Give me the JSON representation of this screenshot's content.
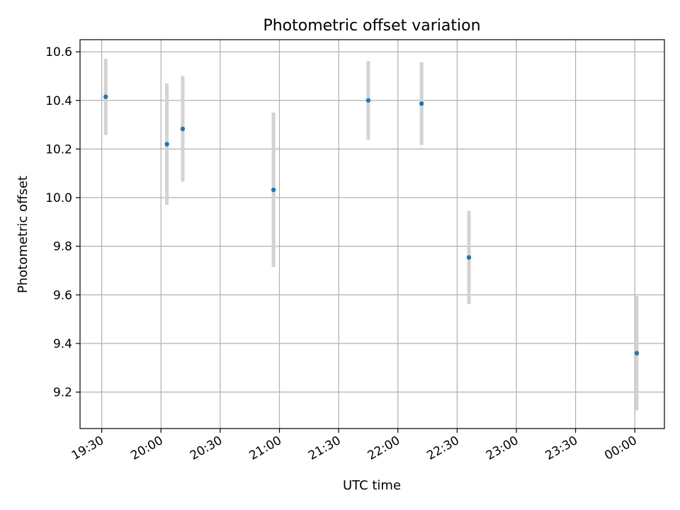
{
  "chart_data": {
    "type": "scatter",
    "title": "Photometric offset variation",
    "xlabel": "UTC time",
    "ylabel": "Photometric offset",
    "x_ticks": [
      "19:30",
      "20:00",
      "20:30",
      "21:00",
      "21:30",
      "22:00",
      "22:30",
      "23:00",
      "23:30",
      "00:00"
    ],
    "y_ticks": [
      "9.2",
      "9.4",
      "9.6",
      "9.8",
      "10.0",
      "10.2",
      "10.4",
      "10.6"
    ],
    "xlim": [
      "19:19",
      "00:15"
    ],
    "ylim": [
      9.05,
      10.65
    ],
    "grid": true,
    "point_color": "#1f77b4",
    "errorbar_color": "#d3d3d3",
    "series": [
      {
        "points": [
          {
            "x": "19:32",
            "y": 10.415,
            "err": 0.157
          },
          {
            "x": "20:03",
            "y": 10.22,
            "err": 0.25
          },
          {
            "x": "20:11",
            "y": 10.283,
            "err": 0.217
          },
          {
            "x": "20:57",
            "y": 10.032,
            "err": 0.318
          },
          {
            "x": "21:45",
            "y": 10.4,
            "err": 0.162
          },
          {
            "x": "22:12",
            "y": 10.387,
            "err": 0.17
          },
          {
            "x": "22:36",
            "y": 9.754,
            "err": 0.192
          },
          {
            "x": "00:01",
            "y": 9.36,
            "err": 0.235
          }
        ]
      }
    ]
  }
}
